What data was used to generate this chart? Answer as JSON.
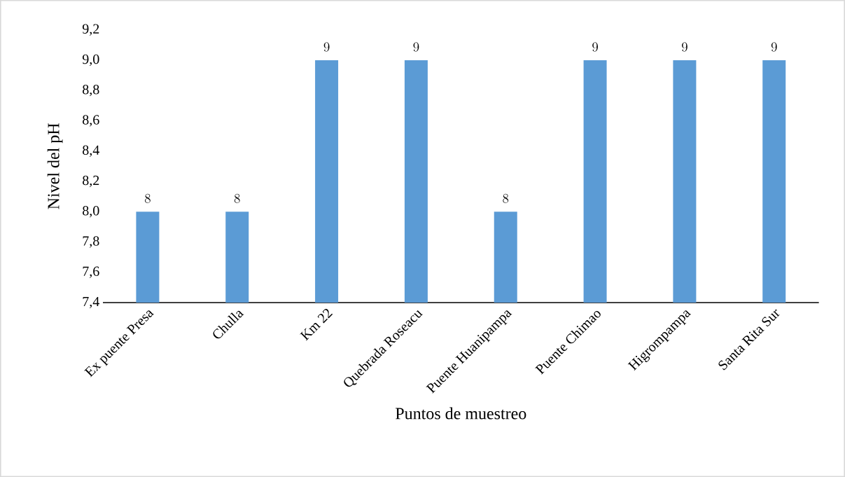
{
  "chart_data": {
    "type": "bar",
    "xlabel": "Puntos de muestreo",
    "ylabel": "Nivel del pH",
    "categories": [
      "Ex puente Presa",
      "Chulla",
      "Km 22",
      "Quebrada Roseacu",
      "Puente Huanipampa",
      "Puente Chimao",
      "Higrompampa",
      "Santa Rita Sur"
    ],
    "values": [
      8,
      8,
      9,
      9,
      8,
      9,
      9,
      9
    ],
    "color": "#5b9bd5",
    "ylim": [
      7.4,
      9.2
    ],
    "yticks": [
      {
        "value": 7.4,
        "label": "7,4"
      },
      {
        "value": 7.6,
        "label": "7,6"
      },
      {
        "value": 7.8,
        "label": "7,8"
      },
      {
        "value": 8.0,
        "label": "8,0"
      },
      {
        "value": 8.2,
        "label": "8,2"
      },
      {
        "value": 8.4,
        "label": "8,4"
      },
      {
        "value": 8.6,
        "label": "8,6"
      },
      {
        "value": 8.8,
        "label": "8,8"
      },
      {
        "value": 9.0,
        "label": "9,0"
      },
      {
        "value": 9.2,
        "label": "9,2"
      }
    ],
    "data_labels": true,
    "grid": false
  }
}
